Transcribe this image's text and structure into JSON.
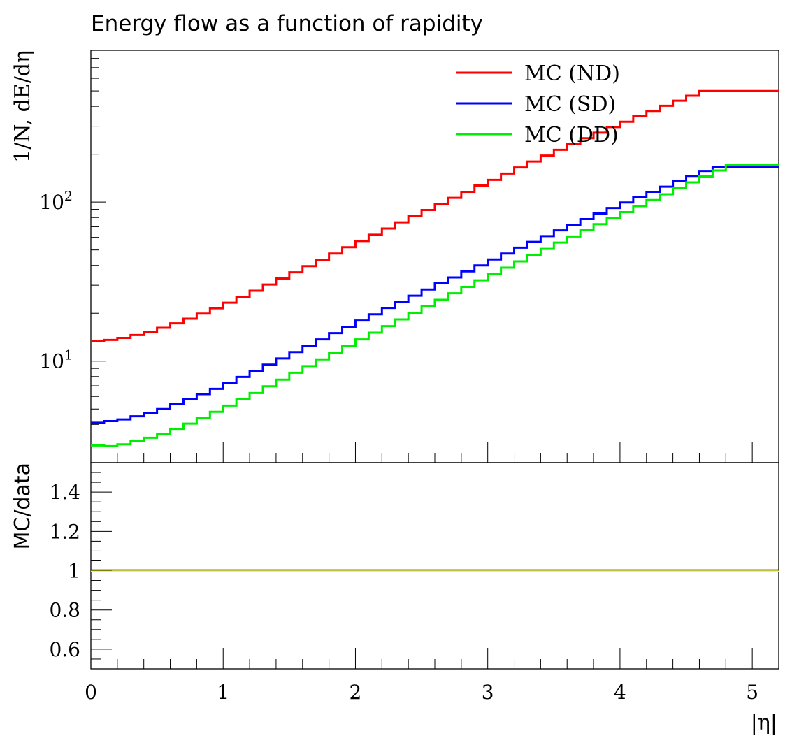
{
  "chart_data": {
    "type": "line",
    "title": "Energy flow as a function of rapidity",
    "xlabel": "|η|",
    "xlim": [
      0,
      5.2
    ],
    "x_ticks": [
      "0",
      "1",
      "2",
      "3",
      "4",
      "5"
    ],
    "x_tick_values": [
      0,
      1,
      2,
      3,
      4,
      5
    ],
    "main_panel": {
      "ylabel": "1/N, dE/dη",
      "yscale": "log",
      "ylim": [
        2.3,
        900
      ],
      "y_tick_labels": [
        {
          "base": "10",
          "exp": "1",
          "value": 10
        },
        {
          "base": "10",
          "exp": "2",
          "value": 100
        }
      ],
      "legend_position": "top-right",
      "bin_edges": [
        0,
        0.1,
        0.2,
        0.3,
        0.4,
        0.5,
        0.6,
        0.7,
        0.8,
        0.9,
        1.0,
        1.1,
        1.2,
        1.3,
        1.4,
        1.5,
        1.6,
        1.7,
        1.8,
        1.9,
        2.0,
        2.1,
        2.2,
        2.3,
        2.4,
        2.5,
        2.6,
        2.7,
        2.8,
        2.9,
        3.0,
        3.1,
        3.2,
        3.3,
        3.4,
        3.5,
        3.6,
        3.7,
        3.8,
        3.9,
        4.0,
        4.1,
        4.2,
        4.3,
        4.4,
        4.5,
        4.6,
        4.7,
        4.8,
        4.9,
        5.0,
        5.1,
        5.2
      ],
      "series": [
        {
          "name": "MC (ND)",
          "color": "#ff0000",
          "values": [
            13.3,
            13.6,
            14.0,
            14.6,
            15.3,
            16.2,
            17.3,
            18.5,
            19.9,
            21.5,
            23.3,
            25.4,
            27.7,
            30.3,
            33.1,
            36.2,
            39.6,
            43.4,
            47.5,
            52.0,
            56.9,
            62.3,
            68.2,
            74.6,
            81.6,
            89.2,
            97.4,
            106.3,
            116,
            127,
            138,
            151,
            165,
            180,
            196,
            213,
            232,
            252,
            273,
            296,
            320,
            346,
            374,
            403,
            434,
            466,
            499,
            499,
            499,
            499,
            499,
            499
          ]
        },
        {
          "name": "MC (SD)",
          "color": "#0000ff",
          "values": [
            4.1,
            4.2,
            4.3,
            4.5,
            4.7,
            5.0,
            5.35,
            5.75,
            6.2,
            6.7,
            7.3,
            7.95,
            8.7,
            9.5,
            10.4,
            11.4,
            12.5,
            13.7,
            15.0,
            16.45,
            18.0,
            19.7,
            21.6,
            23.6,
            25.8,
            28.2,
            30.8,
            33.6,
            36.7,
            40.0,
            43.6,
            47.5,
            51.7,
            56.2,
            61.1,
            66.4,
            72.1,
            78.2,
            84.8,
            91.8,
            99.4,
            107.5,
            116,
            125,
            135,
            146,
            157,
            166,
            166,
            166,
            166,
            166
          ]
        },
        {
          "name": "MC (DD)",
          "color": "#00ee00",
          "values": [
            2.95,
            2.92,
            3.0,
            3.15,
            3.3,
            3.5,
            3.75,
            4.05,
            4.4,
            4.8,
            5.25,
            5.75,
            6.3,
            6.95,
            7.65,
            8.45,
            9.3,
            10.25,
            11.3,
            12.45,
            13.7,
            15.1,
            16.6,
            18.3,
            20.1,
            22.1,
            24.3,
            26.7,
            29.3,
            32.2,
            35.3,
            38.7,
            42.4,
            46.4,
            50.8,
            55.6,
            60.8,
            66.5,
            72.6,
            79.3,
            86.5,
            94.3,
            103,
            112,
            122,
            133,
            145,
            158,
            172,
            172,
            172,
            172
          ]
        }
      ]
    },
    "ratio_panel": {
      "ylabel": "MC/data",
      "ylim": [
        0.5,
        1.55
      ],
      "y_ticks": [
        "0.6",
        "0.8",
        "1",
        "1.2",
        "1.4"
      ],
      "y_tick_values": [
        0.6,
        0.8,
        1.0,
        1.2,
        1.4
      ],
      "ratio_value": 1.0,
      "ratio_color": "#ffff00"
    }
  }
}
